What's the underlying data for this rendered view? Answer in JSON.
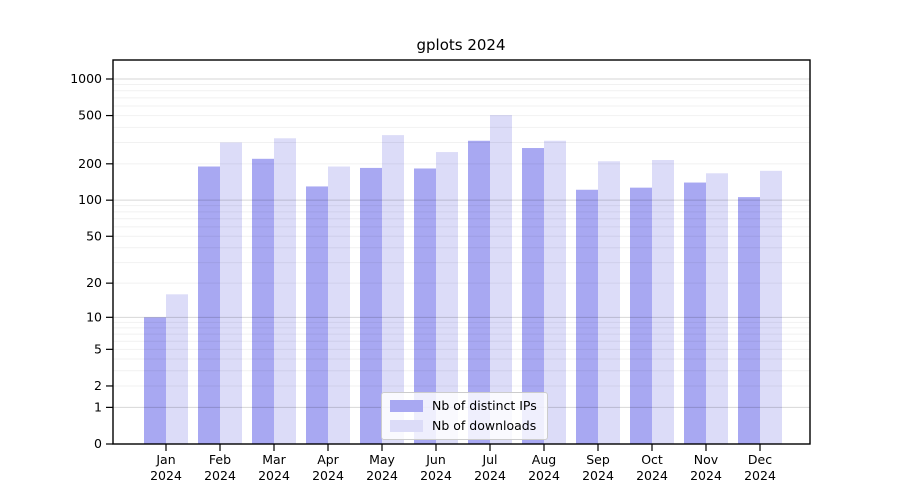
{
  "chart_data": {
    "type": "bar",
    "title": "gplots 2024",
    "scale": "log1p",
    "grid": true,
    "legend_position": "bottom-center",
    "categories": [
      "Jan",
      "Feb",
      "Mar",
      "Apr",
      "May",
      "Jun",
      "Jul",
      "Aug",
      "Sep",
      "Oct",
      "Nov",
      "Dec"
    ],
    "year": "2024",
    "series": [
      {
        "name": "Nb of distinct IPs",
        "color": "#a8a8f2",
        "values": [
          10,
          190,
          220,
          130,
          185,
          183,
          310,
          270,
          122,
          127,
          140,
          106
        ]
      },
      {
        "name": "Nb of downloads",
        "color": "#dcdcf8",
        "values": [
          16,
          300,
          325,
          190,
          345,
          250,
          505,
          310,
          210,
          215,
          167,
          175
        ]
      }
    ],
    "y_ticks": [
      1000,
      500,
      200,
      100,
      50,
      20,
      10,
      5,
      2,
      1,
      0
    ],
    "ylim": [
      0,
      1434
    ],
    "xlabel": "",
    "ylabel": ""
  }
}
